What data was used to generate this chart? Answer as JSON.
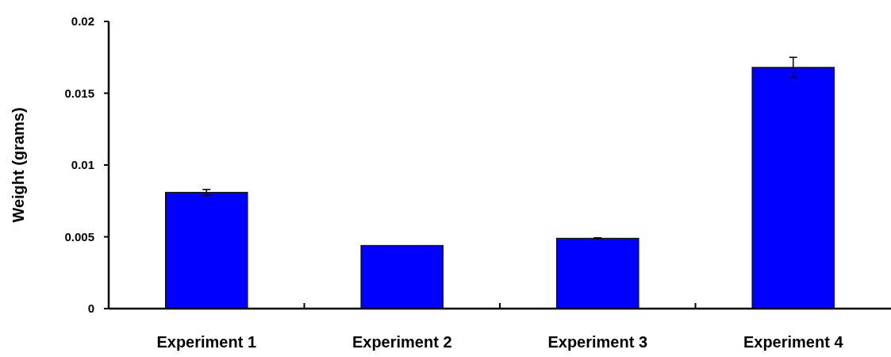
{
  "chart_data": {
    "type": "bar",
    "ylabel": "Weight (grams)",
    "categories": [
      "Experiment 1",
      "Experiment 2",
      "Experiment 3",
      "Experiment 4"
    ],
    "values": [
      0.0081,
      0.0044,
      0.0049,
      0.0168
    ],
    "errors": [
      0.0002,
      null,
      3e-05,
      0.0007
    ],
    "color": "#0000ff",
    "ylim": [
      0,
      0.02
    ],
    "yticks": [
      0,
      0.005,
      0.01,
      0.015,
      0.02
    ],
    "grid": false
  }
}
